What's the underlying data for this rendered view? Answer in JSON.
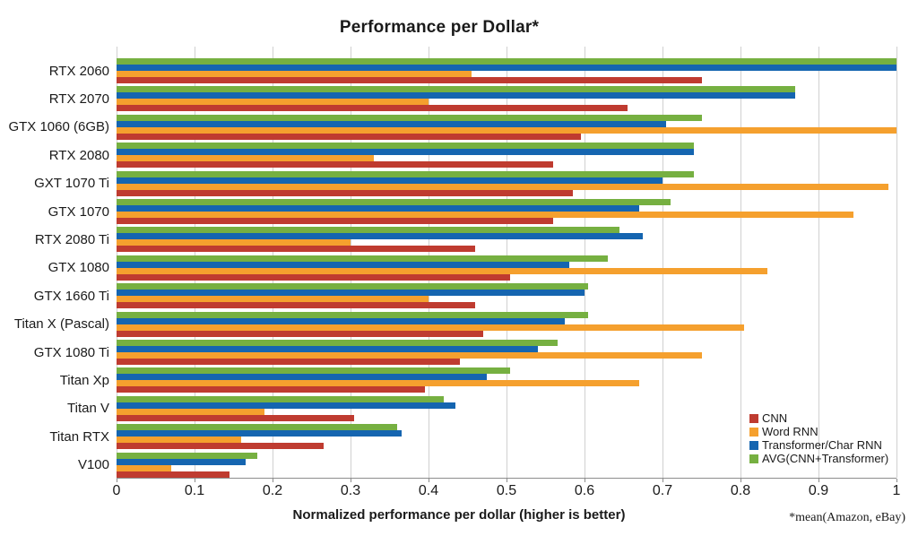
{
  "title": "Performance per Dollar*",
  "footnote": "*mean(Amazon, eBay)",
  "chart_data": {
    "type": "bar",
    "orientation": "horizontal",
    "title": "Performance per Dollar*",
    "xlabel": "Normalized performance per dollar (higher is better)",
    "ylabel": "",
    "xlim": [
      0,
      1
    ],
    "grid": true,
    "legend_position": "lower-right",
    "xtick_values": [
      0,
      0.1,
      0.2,
      0.3,
      0.4,
      0.5,
      0.6,
      0.7,
      0.8,
      0.9,
      1
    ],
    "xtick_labels": [
      "0",
      "0.1",
      "0.2",
      "0.3",
      "0.4",
      "0.5",
      "0.6",
      "0.7",
      "0.8",
      "0.9",
      "1"
    ],
    "categories": [
      "RTX 2060",
      "RTX 2070",
      "GTX 1060 (6GB)",
      "RTX 2080",
      "GXT 1070 Ti",
      "GTX 1070",
      "RTX 2080 Ti",
      "GTX 1080",
      "GTX 1660 Ti",
      "Titan X (Pascal)",
      "GTX 1080 Ti",
      "Titan Xp",
      "Titan V",
      "Titan RTX",
      "V100"
    ],
    "series": [
      {
        "name": "CNN",
        "color": "#bf3b30",
        "values": [
          0.75,
          0.655,
          0.595,
          0.56,
          0.585,
          0.56,
          0.46,
          0.505,
          0.46,
          0.47,
          0.44,
          0.395,
          0.305,
          0.265,
          0.145
        ]
      },
      {
        "name": "Word RNN",
        "color": "#f5a02e",
        "values": [
          0.455,
          0.4,
          1.0,
          0.33,
          0.99,
          0.945,
          0.3,
          0.835,
          0.4,
          0.805,
          0.75,
          0.67,
          0.19,
          0.16,
          0.07
        ]
      },
      {
        "name": "Transformer/Char RNN",
        "color": "#1565b0",
        "values": [
          1.0,
          0.87,
          0.705,
          0.74,
          0.7,
          0.67,
          0.675,
          0.58,
          0.6,
          0.575,
          0.54,
          0.475,
          0.435,
          0.365,
          0.165
        ]
      },
      {
        "name": "AVG(CNN+Transformer)",
        "color": "#76b041",
        "values": [
          1.0,
          0.87,
          0.75,
          0.74,
          0.74,
          0.71,
          0.645,
          0.63,
          0.605,
          0.605,
          0.565,
          0.505,
          0.42,
          0.36,
          0.18
        ]
      }
    ],
    "bar_order_top_to_bottom": [
      "AVG(CNN+Transformer)",
      "Transformer/Char RNN",
      "Word RNN",
      "CNN"
    ],
    "colors": {
      "grid": "#d0d0d0",
      "axis": "#8c8c8c",
      "text": "#1a1a1a"
    }
  }
}
